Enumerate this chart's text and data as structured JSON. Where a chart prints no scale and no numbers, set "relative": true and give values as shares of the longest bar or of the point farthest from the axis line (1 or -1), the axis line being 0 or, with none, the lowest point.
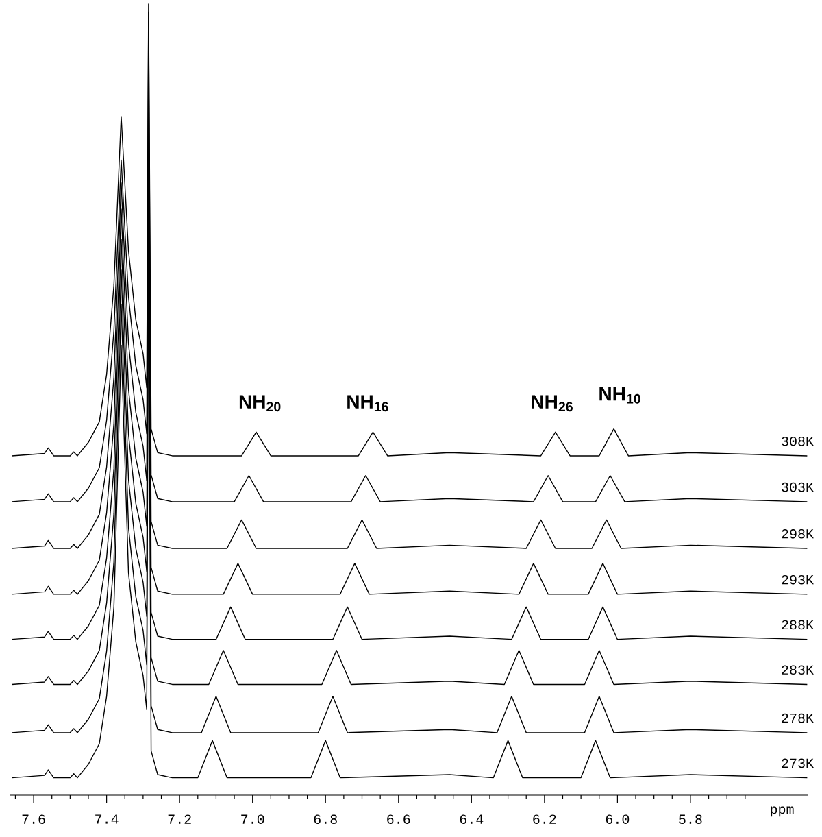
{
  "chart_data": {
    "type": "line",
    "relative": true,
    "xlabel": "ppm",
    "xlim": [
      7.664,
      5.477
    ],
    "tick_labels": "x",
    "xticks": [
      {
        "value": 7.65,
        "label": null
      },
      {
        "value": 7.6,
        "label": "7.6"
      },
      {
        "value": 7.55,
        "label": null
      },
      {
        "value": 7.5,
        "label": null
      },
      {
        "value": 7.45,
        "label": null
      },
      {
        "value": 7.4,
        "label": "7.4"
      },
      {
        "value": 7.35,
        "label": null
      },
      {
        "value": 7.3,
        "label": null
      },
      {
        "value": 7.25,
        "label": null
      },
      {
        "value": 7.2,
        "label": "7.2"
      },
      {
        "value": 7.15,
        "label": null
      },
      {
        "value": 7.1,
        "label": null
      },
      {
        "value": 7.05,
        "label": null
      },
      {
        "value": 7.0,
        "label": "7.0"
      },
      {
        "value": 6.95,
        "label": null
      },
      {
        "value": 6.9,
        "label": null
      },
      {
        "value": 6.85,
        "label": null
      },
      {
        "value": 6.8,
        "label": "6.8"
      },
      {
        "value": 6.75,
        "label": null
      },
      {
        "value": 6.7,
        "label": null
      },
      {
        "value": 6.65,
        "label": null
      },
      {
        "value": 6.6,
        "label": "6.6"
      },
      {
        "value": 6.55,
        "label": null
      },
      {
        "value": 6.5,
        "label": null
      },
      {
        "value": 6.45,
        "label": null
      },
      {
        "value": 6.4,
        "label": "6.4"
      },
      {
        "value": 6.35,
        "label": null
      },
      {
        "value": 6.3,
        "label": null
      },
      {
        "value": 6.25,
        "label": null
      },
      {
        "value": 6.2,
        "label": "6.2"
      },
      {
        "value": 6.15,
        "label": null
      },
      {
        "value": 6.1,
        "label": null
      },
      {
        "value": 6.05,
        "label": null
      },
      {
        "value": 6.0,
        "label": "6.0"
      },
      {
        "value": 5.95,
        "label": null
      },
      {
        "value": 5.9,
        "label": null
      },
      {
        "value": 5.85,
        "label": null
      },
      {
        "value": 5.8,
        "label": "5.8"
      },
      {
        "value": 5.75,
        "label": null
      },
      {
        "value": 5.7,
        "label": null
      },
      {
        "value": 5.65,
        "label": null
      }
    ],
    "annotations": [
      "NH$_{20}$",
      "NH$_{16}$",
      "NH$_{26}$",
      "NH$_{10}$"
    ],
    "series": [
      {
        "name": "308K",
        "color": "#000000",
        "x": [
          7.66,
          7.57,
          7.56,
          7.545,
          7.5,
          7.49,
          7.48,
          7.45,
          7.42,
          7.4,
          7.38,
          7.36,
          7.34,
          7.32,
          7.3,
          7.29,
          7.285,
          7.278,
          7.26,
          7.22,
          7.03,
          6.99,
          6.95,
          6.71,
          6.67,
          6.63,
          6.46,
          6.21,
          6.17,
          6.13,
          6.05,
          6.01,
          5.97,
          5.8,
          5.48
        ],
        "values": [
          0.429,
          0.432,
          0.439,
          0.429,
          0.429,
          0.434,
          0.429,
          0.446,
          0.472,
          0.532,
          0.645,
          0.858,
          0.688,
          0.601,
          0.558,
          0.515,
          1.0,
          0.463,
          0.433,
          0.429,
          0.429,
          0.459,
          0.429,
          0.429,
          0.459,
          0.429,
          0.433,
          0.429,
          0.459,
          0.429,
          0.429,
          0.463,
          0.429,
          0.433,
          0.429
        ]
      },
      {
        "name": "303K",
        "color": "#000000",
        "x": [
          7.66,
          7.57,
          7.56,
          7.545,
          7.5,
          7.49,
          7.48,
          7.45,
          7.42,
          7.4,
          7.38,
          7.36,
          7.34,
          7.32,
          7.3,
          7.29,
          7.285,
          7.278,
          7.26,
          7.22,
          7.05,
          7.01,
          6.97,
          6.73,
          6.69,
          6.65,
          6.46,
          6.23,
          6.19,
          6.15,
          6.06,
          6.02,
          5.98,
          5.8,
          5.48
        ],
        "values": [
          0.371,
          0.374,
          0.381,
          0.371,
          0.371,
          0.376,
          0.371,
          0.388,
          0.414,
          0.474,
          0.587,
          0.803,
          0.63,
          0.543,
          0.5,
          0.457,
          0.99,
          0.405,
          0.375,
          0.371,
          0.371,
          0.404,
          0.371,
          0.371,
          0.404,
          0.371,
          0.375,
          0.371,
          0.404,
          0.371,
          0.371,
          0.404,
          0.371,
          0.375,
          0.371
        ]
      },
      {
        "name": "298K",
        "color": "#000000",
        "x": [
          7.66,
          7.57,
          7.56,
          7.545,
          7.5,
          7.49,
          7.48,
          7.45,
          7.42,
          7.4,
          7.38,
          7.36,
          7.34,
          7.32,
          7.3,
          7.29,
          7.285,
          7.278,
          7.26,
          7.22,
          7.07,
          7.03,
          6.99,
          6.74,
          6.7,
          6.66,
          6.46,
          6.25,
          6.21,
          6.17,
          6.07,
          6.03,
          5.99,
          5.8,
          5.48
        ],
        "values": [
          0.312,
          0.315,
          0.322,
          0.312,
          0.312,
          0.317,
          0.312,
          0.329,
          0.355,
          0.415,
          0.528,
          0.774,
          0.571,
          0.484,
          0.441,
          0.398,
          0.95,
          0.346,
          0.316,
          0.312,
          0.312,
          0.348,
          0.312,
          0.312,
          0.348,
          0.312,
          0.316,
          0.312,
          0.348,
          0.312,
          0.312,
          0.348,
          0.312,
          0.316,
          0.312
        ]
      },
      {
        "name": "293K",
        "color": "#000000",
        "x": [
          7.66,
          7.57,
          7.56,
          7.545,
          7.5,
          7.49,
          7.48,
          7.45,
          7.42,
          7.4,
          7.38,
          7.36,
          7.34,
          7.32,
          7.3,
          7.29,
          7.285,
          7.278,
          7.26,
          7.22,
          7.08,
          7.04,
          7.0,
          6.76,
          6.72,
          6.68,
          6.46,
          6.27,
          6.23,
          6.19,
          6.08,
          6.04,
          6.0,
          5.8,
          5.48
        ],
        "values": [
          0.254,
          0.257,
          0.264,
          0.254,
          0.254,
          0.259,
          0.254,
          0.271,
          0.297,
          0.357,
          0.47,
          0.741,
          0.513,
          0.426,
          0.383,
          0.34,
          0.9,
          0.288,
          0.258,
          0.254,
          0.254,
          0.293,
          0.254,
          0.254,
          0.293,
          0.254,
          0.258,
          0.254,
          0.293,
          0.254,
          0.254,
          0.293,
          0.254,
          0.258,
          0.254
        ]
      },
      {
        "name": "288K",
        "color": "#000000",
        "x": [
          7.66,
          7.57,
          7.56,
          7.545,
          7.5,
          7.49,
          7.48,
          7.45,
          7.42,
          7.4,
          7.38,
          7.36,
          7.34,
          7.32,
          7.3,
          7.29,
          7.285,
          7.278,
          7.26,
          7.22,
          7.1,
          7.06,
          7.02,
          6.78,
          6.74,
          6.7,
          6.46,
          6.29,
          6.25,
          6.21,
          6.08,
          6.04,
          6.0,
          5.8,
          5.48
        ],
        "values": [
          0.197,
          0.2,
          0.207,
          0.197,
          0.197,
          0.202,
          0.197,
          0.214,
          0.24,
          0.3,
          0.413,
          0.703,
          0.456,
          0.369,
          0.326,
          0.283,
          0.85,
          0.231,
          0.201,
          0.197,
          0.197,
          0.238,
          0.197,
          0.197,
          0.238,
          0.197,
          0.201,
          0.197,
          0.238,
          0.197,
          0.197,
          0.238,
          0.197,
          0.201,
          0.197
        ]
      },
      {
        "name": "283K",
        "color": "#000000",
        "x": [
          7.66,
          7.57,
          7.56,
          7.545,
          7.5,
          7.49,
          7.48,
          7.45,
          7.42,
          7.4,
          7.38,
          7.36,
          7.34,
          7.32,
          7.3,
          7.29,
          7.285,
          7.278,
          7.26,
          7.22,
          7.12,
          7.08,
          7.04,
          6.81,
          6.77,
          6.73,
          6.46,
          6.31,
          6.27,
          6.23,
          6.09,
          6.05,
          6.01,
          5.8,
          5.48
        ],
        "values": [
          0.14,
          0.143,
          0.15,
          0.14,
          0.14,
          0.145,
          0.14,
          0.157,
          0.183,
          0.243,
          0.356,
          0.664,
          0.399,
          0.312,
          0.269,
          0.226,
          0.8,
          0.174,
          0.144,
          0.14,
          0.14,
          0.183,
          0.14,
          0.14,
          0.183,
          0.14,
          0.144,
          0.14,
          0.183,
          0.14,
          0.14,
          0.183,
          0.14,
          0.144,
          0.14
        ]
      },
      {
        "name": "278K",
        "color": "#000000",
        "x": [
          7.66,
          7.57,
          7.56,
          7.545,
          7.5,
          7.49,
          7.48,
          7.45,
          7.42,
          7.4,
          7.38,
          7.36,
          7.34,
          7.32,
          7.3,
          7.29,
          7.285,
          7.278,
          7.26,
          7.22,
          7.14,
          7.1,
          7.06,
          6.82,
          6.78,
          6.74,
          6.46,
          6.33,
          6.29,
          6.25,
          6.09,
          6.05,
          6.01,
          5.8,
          5.48
        ],
        "values": [
          0.079,
          0.082,
          0.089,
          0.079,
          0.079,
          0.084,
          0.079,
          0.096,
          0.122,
          0.182,
          0.295,
          0.621,
          0.338,
          0.251,
          0.208,
          0.165,
          0.75,
          0.113,
          0.083,
          0.079,
          0.079,
          0.125,
          0.079,
          0.079,
          0.125,
          0.079,
          0.083,
          0.079,
          0.125,
          0.079,
          0.079,
          0.125,
          0.079,
          0.083,
          0.079
        ]
      },
      {
        "name": "273K",
        "color": "#000000",
        "x": [
          7.66,
          7.57,
          7.56,
          7.545,
          7.5,
          7.49,
          7.48,
          7.45,
          7.42,
          7.4,
          7.38,
          7.36,
          7.34,
          7.32,
          7.3,
          7.29,
          7.285,
          7.278,
          7.26,
          7.22,
          7.15,
          7.11,
          7.07,
          6.84,
          6.8,
          6.76,
          6.46,
          6.34,
          6.3,
          6.26,
          6.1,
          6.06,
          6.02,
          5.8,
          5.48
        ],
        "values": [
          0.022,
          0.025,
          0.032,
          0.022,
          0.022,
          0.027,
          0.022,
          0.039,
          0.065,
          0.125,
          0.238,
          0.569,
          0.281,
          0.194,
          0.151,
          0.108,
          0.7,
          0.056,
          0.026,
          0.022,
          0.022,
          0.069,
          0.022,
          0.022,
          0.069,
          0.022,
          0.026,
          0.022,
          0.069,
          0.022,
          0.022,
          0.069,
          0.022,
          0.026,
          0.022
        ]
      }
    ]
  }
}
